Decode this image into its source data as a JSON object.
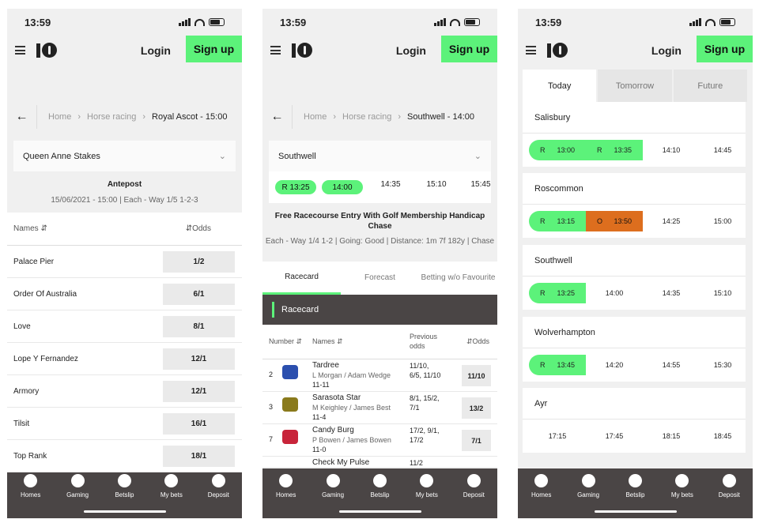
{
  "status": {
    "time": "13:59"
  },
  "header": {
    "login": "Login",
    "signup": "Sign up"
  },
  "nav": [
    {
      "label": "Homes",
      "icon": "home-icon"
    },
    {
      "label": "Gaming",
      "icon": "dice-icon"
    },
    {
      "label": "Betslip",
      "icon": "betslip-icon"
    },
    {
      "label": "My bets",
      "icon": "mybets-icon"
    },
    {
      "label": "Deposit",
      "icon": "deposit-icon"
    }
  ],
  "phone1": {
    "crumbs": [
      "Home",
      "Horse racing",
      "Royal Ascot - 15:00"
    ],
    "race_select": "Queen Anne Stakes",
    "title": "Antepost",
    "subtitle": "15/06/2021 - 15:00 | Each - Way 1/5 1-2-3",
    "col_names": "Names",
    "col_odds": "Odds",
    "runners": [
      {
        "name": "Palace Pier",
        "odds": "1/2"
      },
      {
        "name": "Order Of Australia",
        "odds": "6/1"
      },
      {
        "name": "Love",
        "odds": "8/1"
      },
      {
        "name": "Lope Y Fernandez",
        "odds": "12/1"
      },
      {
        "name": "Armory",
        "odds": "12/1"
      },
      {
        "name": "Tilsit",
        "odds": "16/1"
      },
      {
        "name": "Top Rank",
        "odds": "18/1"
      }
    ]
  },
  "phone2": {
    "crumbs": [
      "Home",
      "Horse racing",
      "Southwell - 14:00"
    ],
    "meeting_select": "Southwell",
    "times": [
      {
        "label": "R 13:25",
        "style": "pill"
      },
      {
        "label": "14:00",
        "style": "pill"
      },
      {
        "label": "14:35",
        "style": "plain"
      },
      {
        "label": "15:10",
        "style": "plain"
      },
      {
        "label": "15:45",
        "style": "plain"
      }
    ],
    "title": "Free Racecourse Entry With Golf Membership Handicap Chase",
    "subtitle": "Each - Way 1/4 1-2 | Going: Good | Distance: 1m 7f 182y | Chase",
    "tabs": [
      "Racecard",
      "Forecast",
      "Betting w/o Favourite"
    ],
    "section": "Racecard",
    "col_number": "Number",
    "col_names": "Names",
    "col_prev": "Previous odds",
    "col_odds": "Odds",
    "runners": [
      {
        "number": "2",
        "name": "Tardree",
        "jockey": "L Morgan / Adam Wedge",
        "age_weight": "11-11",
        "prev": "11/10, 6/5, 11/10",
        "odds": "11/10",
        "silk": "#2b4fae"
      },
      {
        "number": "3",
        "name": "Sarasota Star",
        "jockey": "M Keighley / James Best",
        "age_weight": "11-4",
        "prev": "8/1, 15/2, 7/1",
        "odds": "13/2",
        "silk": "#8a7a1c"
      },
      {
        "number": "7",
        "name": "Candy Burg",
        "jockey": "P Bowen / James Bowen",
        "age_weight": "11-0",
        "prev": "17/2, 9/1, 17/2",
        "odds": "7/1",
        "silk": "#c8243a"
      },
      {
        "number": "",
        "name": "Check My Pulse",
        "jockey": "",
        "age_weight": "",
        "prev": "11/2",
        "odds": "",
        "silk": ""
      }
    ]
  },
  "phone3": {
    "tabs": [
      "Today",
      "Tomorrow",
      "Future"
    ],
    "meetings": [
      {
        "name": "Salisbury",
        "slots": [
          {
            "tag": "R",
            "time": "13:00",
            "color": "g"
          },
          {
            "tag": "R",
            "time": "13:35",
            "color": "g"
          }
        ],
        "times": [
          "14:10",
          "14:45"
        ]
      },
      {
        "name": "Roscommon",
        "slots": [
          {
            "tag": "R",
            "time": "13:15",
            "color": "g"
          },
          {
            "tag": "O",
            "time": "13:50",
            "color": "o"
          }
        ],
        "times": [
          "14:25",
          "15:00"
        ]
      },
      {
        "name": "Southwell",
        "slots": [
          {
            "tag": "R",
            "time": "13:25",
            "color": "g"
          }
        ],
        "times": [
          "14:00",
          "14:35",
          "15:10"
        ]
      },
      {
        "name": "Wolverhampton",
        "slots": [
          {
            "tag": "R",
            "time": "13:45",
            "color": "g"
          }
        ],
        "times": [
          "14:20",
          "14:55",
          "15:30"
        ]
      },
      {
        "name": "Ayr",
        "slots": [],
        "times": [
          "17:15",
          "17:45",
          "18:15",
          "18:45"
        ]
      }
    ]
  }
}
